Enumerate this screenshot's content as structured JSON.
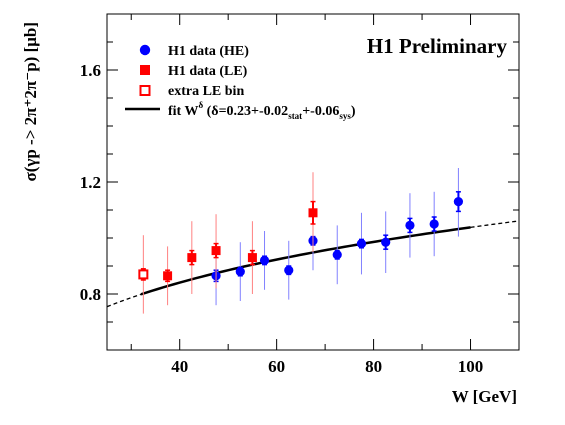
{
  "chart_data": {
    "type": "scatter",
    "banner": "H1 Preliminary",
    "xlabel": "W [GeV]",
    "ylabel": "σ(γp -> 2π⁺2π⁻p) [μb]",
    "xlim": [
      25,
      110
    ],
    "ylim": [
      0.6,
      1.8
    ],
    "x_ticks": [
      40,
      60,
      80,
      100
    ],
    "y_ticks": [
      0.8,
      1.2,
      1.6
    ],
    "legend_placement": "top-left",
    "legend": [
      {
        "marker": "filled-circle",
        "color": "#0000ff",
        "label": "H1 data (HE)"
      },
      {
        "marker": "filled-square",
        "color": "#ff0000",
        "label": "H1 data (LE)"
      },
      {
        "marker": "open-square",
        "color": "#ff0000",
        "label": "extra LE bin"
      },
      {
        "marker": "line",
        "color": "#000000",
        "label_main": "fit W",
        "label_sup": "δ",
        "label_paren_open": " (δ=0.23+-0.02",
        "label_sub1": "stat",
        "label_mid": "+-0.06",
        "label_sub2": "sys",
        "label_close": ")"
      }
    ],
    "series": [
      {
        "name": "H1 data (HE)",
        "color": "#0000ff",
        "marker": "filled-circle",
        "points": [
          {
            "x": 47.5,
            "y": 0.865,
            "stat_lo": 0.845,
            "stat_hi": 0.885,
            "tot_lo": 0.76,
            "tot_hi": 0.97
          },
          {
            "x": 52.5,
            "y": 0.88,
            "stat_lo": 0.865,
            "stat_hi": 0.895,
            "tot_lo": 0.775,
            "tot_hi": 0.985
          },
          {
            "x": 57.5,
            "y": 0.92,
            "stat_lo": 0.905,
            "stat_hi": 0.935,
            "tot_lo": 0.815,
            "tot_hi": 1.025
          },
          {
            "x": 62.5,
            "y": 0.885,
            "stat_lo": 0.87,
            "stat_hi": 0.9,
            "tot_lo": 0.78,
            "tot_hi": 0.99
          },
          {
            "x": 67.5,
            "y": 0.99,
            "stat_lo": 0.975,
            "stat_hi": 1.005,
            "tot_lo": 0.885,
            "tot_hi": 1.095
          },
          {
            "x": 72.5,
            "y": 0.94,
            "stat_lo": 0.925,
            "stat_hi": 0.955,
            "tot_lo": 0.835,
            "tot_hi": 1.045
          },
          {
            "x": 77.5,
            "y": 0.98,
            "stat_lo": 0.965,
            "stat_hi": 0.995,
            "tot_lo": 0.87,
            "tot_hi": 1.09
          },
          {
            "x": 82.5,
            "y": 0.985,
            "stat_lo": 0.96,
            "stat_hi": 1.01,
            "tot_lo": 0.875,
            "tot_hi": 1.095
          },
          {
            "x": 87.5,
            "y": 1.045,
            "stat_lo": 1.02,
            "stat_hi": 1.07,
            "tot_lo": 0.93,
            "tot_hi": 1.16
          },
          {
            "x": 92.5,
            "y": 1.05,
            "stat_lo": 1.025,
            "stat_hi": 1.075,
            "tot_lo": 0.935,
            "tot_hi": 1.165
          },
          {
            "x": 97.5,
            "y": 1.13,
            "stat_lo": 1.095,
            "stat_hi": 1.165,
            "tot_lo": 1.005,
            "tot_hi": 1.25
          }
        ]
      },
      {
        "name": "H1 data (LE)",
        "color": "#ff0000",
        "marker": "filled-square",
        "points": [
          {
            "x": 37.5,
            "y": 0.865,
            "stat_lo": 0.845,
            "stat_hi": 0.885,
            "tot_lo": 0.76,
            "tot_hi": 0.97
          },
          {
            "x": 42.5,
            "y": 0.93,
            "stat_lo": 0.905,
            "stat_hi": 0.955,
            "tot_lo": 0.8,
            "tot_hi": 1.06
          },
          {
            "x": 47.5,
            "y": 0.955,
            "stat_lo": 0.93,
            "stat_hi": 0.98,
            "tot_lo": 0.82,
            "tot_hi": 1.085
          },
          {
            "x": 55.0,
            "y": 0.93,
            "stat_lo": 0.905,
            "stat_hi": 0.955,
            "tot_lo": 0.8,
            "tot_hi": 1.06
          },
          {
            "x": 67.5,
            "y": 1.09,
            "stat_lo": 1.05,
            "stat_hi": 1.13,
            "tot_lo": 0.95,
            "tot_hi": 1.235
          }
        ]
      },
      {
        "name": "extra LE bin",
        "color": "#ff0000",
        "marker": "open-square",
        "points": [
          {
            "x": 32.5,
            "y": 0.87,
            "stat_lo": 0.85,
            "stat_hi": 0.89,
            "tot_lo": 0.73,
            "tot_hi": 1.01
          }
        ]
      }
    ],
    "fit": {
      "name": "fit W^δ",
      "delta": 0.23,
      "norm_W": 50,
      "norm_sigma": 0.885,
      "solid_range": [
        32,
        100
      ],
      "dashed_ranges": [
        [
          25,
          32
        ],
        [
          100,
          110
        ]
      ]
    }
  }
}
